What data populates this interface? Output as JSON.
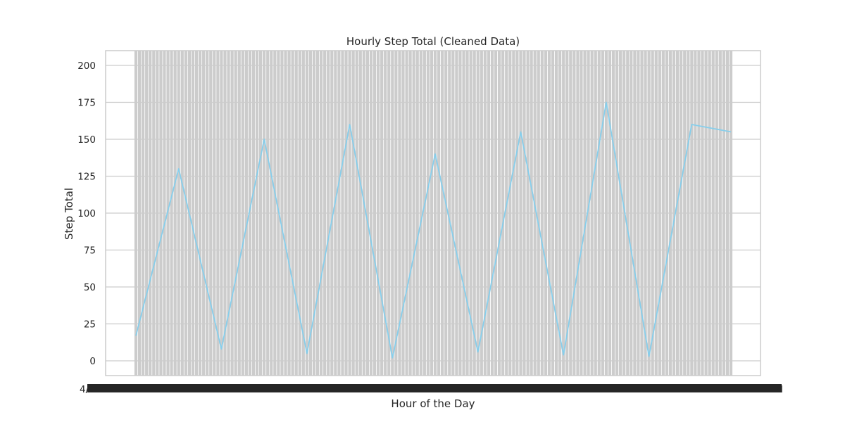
{
  "chart_data": {
    "type": "line",
    "title": "Hourly Step Total (Cleaned Data)",
    "xlabel": "Hour of the Day",
    "ylabel": "Step Total",
    "ylim": [
      -10,
      210
    ],
    "yticks": [
      0,
      25,
      50,
      75,
      100,
      125,
      150,
      175,
      200
    ],
    "grid": true,
    "legend": "none",
    "x_tick_labels_note": "overlapping, unreadable",
    "x_tick_first_label": "4/1",
    "x_tick_last_label": "M",
    "x_tick_count": 168,
    "colors": {
      "line": "#87ceeb",
      "grid": "#cccccc",
      "axes_edge": "#cccccc",
      "text": "#262626"
    },
    "x": [
      0,
      12,
      24,
      36,
      48,
      60,
      72,
      84,
      96,
      108,
      120,
      132,
      144,
      156,
      167
    ],
    "series": [
      {
        "values": [
          17,
          130,
          8,
          150,
          5,
          160,
          2,
          140,
          6,
          155,
          4,
          175,
          3,
          160,
          155
        ]
      }
    ]
  }
}
